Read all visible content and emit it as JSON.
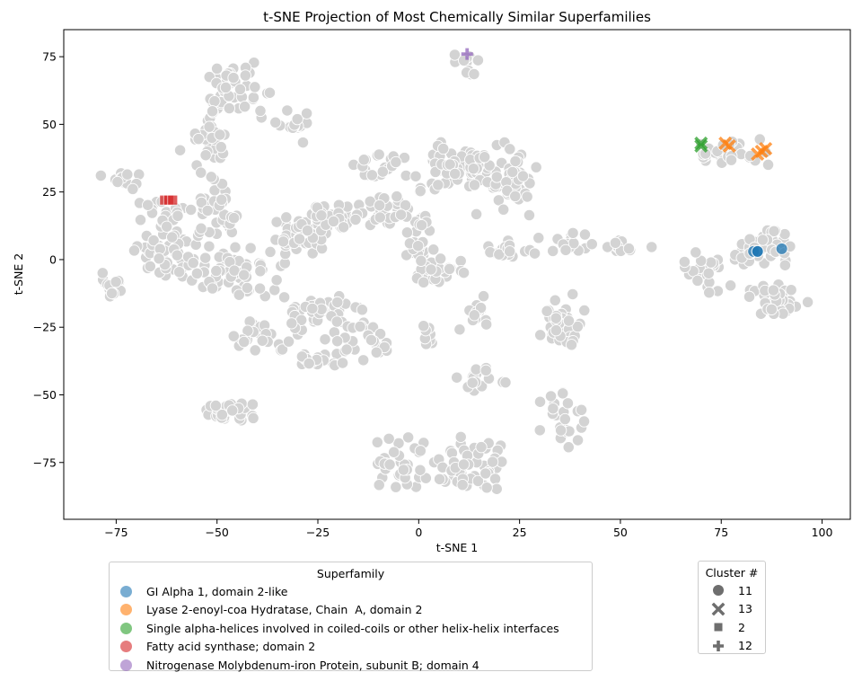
{
  "chart_data": {
    "type": "scatter",
    "title": "t-SNE Projection of Most Chemically Similar Superfamilies",
    "xlabel": "t-SNE 1",
    "ylabel": "t-SNE 2",
    "xlim": [
      -88,
      107
    ],
    "ylim": [
      -96,
      85
    ],
    "x_ticks": [
      -75,
      -50,
      -25,
      0,
      25,
      50,
      75,
      100
    ],
    "y_ticks": [
      -75,
      -50,
      -25,
      0,
      25,
      50,
      75
    ],
    "x_tick_labels": [
      "−75",
      "−50",
      "−25",
      "0",
      "25",
      "50",
      "75",
      "100"
    ],
    "y_tick_labels": [
      "−75",
      "−50",
      "−25",
      "0",
      "25",
      "50",
      "75"
    ],
    "grid": false,
    "background_color": "#d3d3d3",
    "background_clusters": [
      {
        "cx": -76,
        "cy": -10,
        "rx": 3,
        "ry": 4,
        "n": 20
      },
      {
        "cx": -73,
        "cy": 29,
        "rx": 4,
        "ry": 4,
        "n": 14
      },
      {
        "cx": -62,
        "cy": 2,
        "rx": 8,
        "ry": 7,
        "n": 55
      },
      {
        "cx": -62,
        "cy": 18,
        "rx": 6,
        "ry": 6,
        "n": 20
      },
      {
        "cx": -52,
        "cy": 45,
        "rx": 5,
        "ry": 8,
        "n": 30
      },
      {
        "cx": -45,
        "cy": 62,
        "rx": 7,
        "ry": 8,
        "n": 45
      },
      {
        "cx": -30,
        "cy": 50,
        "rx": 4,
        "ry": 5,
        "n": 15
      },
      {
        "cx": -50,
        "cy": 18,
        "rx": 5,
        "ry": 10,
        "n": 35
      },
      {
        "cx": -45,
        "cy": -5,
        "rx": 10,
        "ry": 8,
        "n": 60
      },
      {
        "cx": -30,
        "cy": 8,
        "rx": 7,
        "ry": 7,
        "n": 45
      },
      {
        "cx": -20,
        "cy": 15,
        "rx": 6,
        "ry": 6,
        "n": 30
      },
      {
        "cx": -8,
        "cy": 18,
        "rx": 6,
        "ry": 5,
        "n": 25
      },
      {
        "cx": -10,
        "cy": 35,
        "rx": 8,
        "ry": 5,
        "n": 22
      },
      {
        "cx": -25,
        "cy": -20,
        "rx": 9,
        "ry": 6,
        "n": 45
      },
      {
        "cx": -38,
        "cy": -28,
        "rx": 6,
        "ry": 6,
        "n": 25
      },
      {
        "cx": -15,
        "cy": -30,
        "rx": 6,
        "ry": 7,
        "n": 30
      },
      {
        "cx": -25,
        "cy": -38,
        "rx": 5,
        "ry": 3,
        "n": 15
      },
      {
        "cx": -46,
        "cy": -56,
        "rx": 6,
        "ry": 4,
        "n": 40
      },
      {
        "cx": 0,
        "cy": 8,
        "rx": 4,
        "ry": 10,
        "n": 25
      },
      {
        "cx": 5,
        "cy": -5,
        "rx": 6,
        "ry": 5,
        "n": 25
      },
      {
        "cx": 2,
        "cy": -28,
        "rx": 4,
        "ry": 4,
        "n": 10
      },
      {
        "cx": 12,
        "cy": 35,
        "rx": 12,
        "ry": 9,
        "n": 80
      },
      {
        "cx": 22,
        "cy": 28,
        "rx": 8,
        "ry": 8,
        "n": 40
      },
      {
        "cx": 22,
        "cy": 3,
        "rx": 6,
        "ry": 3,
        "n": 20
      },
      {
        "cx": 15,
        "cy": -20,
        "rx": 4,
        "ry": 7,
        "n": 15
      },
      {
        "cx": 15,
        "cy": -45,
        "rx": 6,
        "ry": 5,
        "n": 20
      },
      {
        "cx": -3,
        "cy": -75,
        "rx": 6,
        "ry": 8,
        "n": 35
      },
      {
        "cx": 13,
        "cy": -75,
        "rx": 8,
        "ry": 9,
        "n": 50
      },
      {
        "cx": 13,
        "cy": 72,
        "rx": 3,
        "ry": 4,
        "n": 12
      },
      {
        "cx": 35,
        "cy": -25,
        "rx": 6,
        "ry": 9,
        "n": 40
      },
      {
        "cx": 35,
        "cy": -60,
        "rx": 5,
        "ry": 10,
        "n": 25
      },
      {
        "cx": 38,
        "cy": 7,
        "rx": 6,
        "ry": 4,
        "n": 15
      },
      {
        "cx": 50,
        "cy": 5,
        "rx": 5,
        "ry": 2,
        "n": 15
      },
      {
        "cx": 70,
        "cy": -5,
        "rx": 6,
        "ry": 9,
        "n": 25
      },
      {
        "cx": 72,
        "cy": 38,
        "rx": 5,
        "ry": 3,
        "n": 10
      },
      {
        "cx": 80,
        "cy": 40,
        "rx": 6,
        "ry": 5,
        "n": 20
      },
      {
        "cx": 85,
        "cy": 5,
        "rx": 7,
        "ry": 6,
        "n": 45
      },
      {
        "cx": 88,
        "cy": -15,
        "rx": 7,
        "ry": 7,
        "n": 35
      }
    ],
    "series": [
      {
        "name": "GI Alpha 1, domain 2-like",
        "color": "#1f77b4",
        "marker": "circle",
        "cluster": "11",
        "points": [
          [
            83,
            3
          ],
          [
            84,
            3
          ],
          [
            84,
            3
          ],
          [
            90,
            4
          ]
        ]
      },
      {
        "name": "Lyase 2-enoyl-coa Hydratase, Chain  A, domain 2",
        "color": "#ff7f0e",
        "marker": "x",
        "cluster": "13",
        "points": [
          [
            76,
            43
          ],
          [
            77,
            42
          ],
          [
            84,
            39
          ],
          [
            85,
            40
          ],
          [
            86,
            41
          ]
        ]
      },
      {
        "name": "Single alpha-helices involved in coiled-coils or other helix-helix interfaces",
        "color": "#2ca02c",
        "marker": "x",
        "cluster": "13",
        "points": [
          [
            70,
            43
          ],
          [
            70,
            42
          ]
        ]
      },
      {
        "name": "Fatty acid synthase; domain 2",
        "color": "#d62728",
        "marker": "square",
        "cluster": "2",
        "points": [
          [
            -63,
            22
          ],
          [
            -62,
            22
          ],
          [
            -61,
            22
          ]
        ]
      },
      {
        "name": "Nitrogenase Molybdenum-iron Protein, subunit B; domain 4",
        "color": "#9467bd",
        "marker": "plus",
        "cluster": "12",
        "points": [
          [
            12,
            76
          ]
        ]
      }
    ],
    "legend_superfamily": {
      "title": "Superfamily",
      "placement": "below-left",
      "items": [
        {
          "label": "GI Alpha 1, domain 2-like",
          "color": "#1f77b4"
        },
        {
          "label": "Lyase 2-enoyl-coa Hydratase, Chain  A, domain 2",
          "color": "#ff7f0e"
        },
        {
          "label": "Single alpha-helices involved in coiled-coils or other helix-helix interfaces",
          "color": "#2ca02c"
        },
        {
          "label": "Fatty acid synthase; domain 2",
          "color": "#d62728"
        },
        {
          "label": "Nitrogenase Molybdenum-iron Protein, subunit B; domain 4",
          "color": "#9467bd"
        }
      ]
    },
    "legend_cluster": {
      "title": "Cluster #",
      "placement": "below-right",
      "items": [
        {
          "label": "11",
          "marker": "circle"
        },
        {
          "label": "13",
          "marker": "x"
        },
        {
          "label": "2",
          "marker": "square"
        },
        {
          "label": "12",
          "marker": "plus"
        }
      ]
    }
  }
}
